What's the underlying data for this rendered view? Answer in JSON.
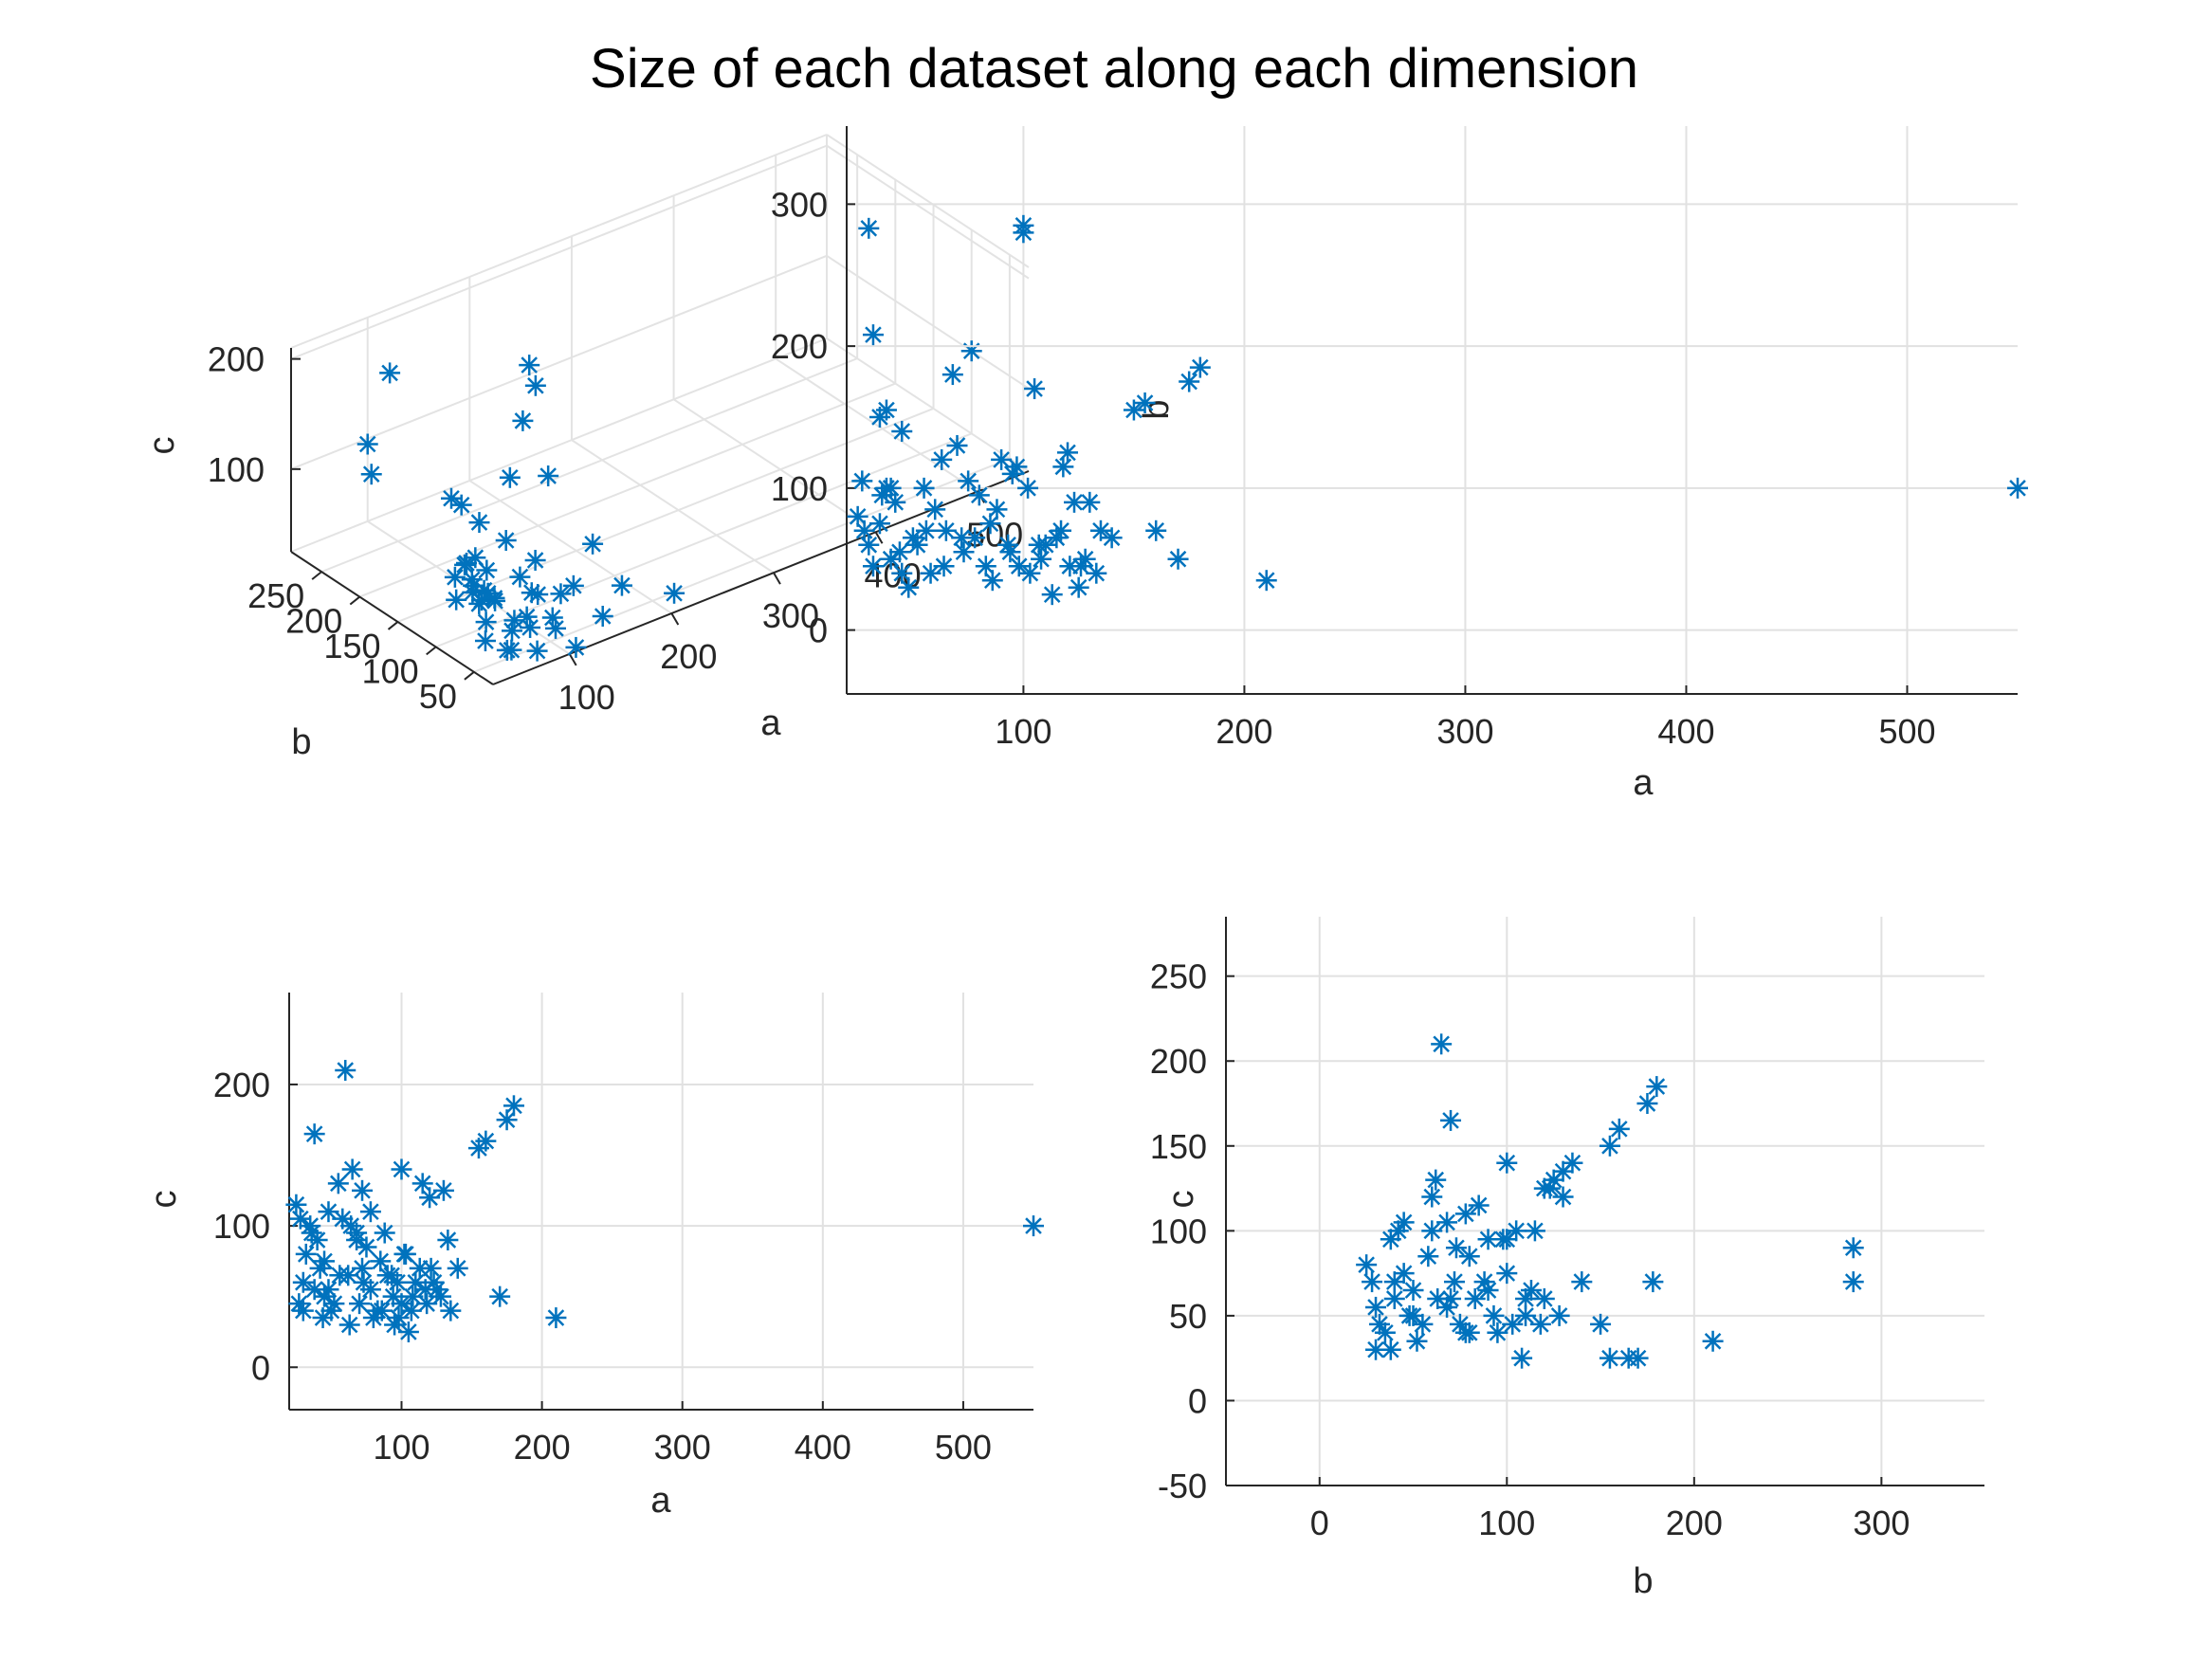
{
  "figure": {
    "suptitle": "Size of each dataset along each dimension",
    "marker_color": "#0072BD",
    "marker": "asterisk"
  },
  "chart_data": [
    {
      "type": "scatter",
      "projection": "3d",
      "position": "top-left",
      "title": "",
      "xlabel": "a",
      "ylabel": "b",
      "zlabel": "c",
      "xticks": [
        "100",
        "200",
        "300",
        "400",
        "500"
      ],
      "yticks": [
        "250",
        "200",
        "150",
        "100",
        "50"
      ],
      "zticks": [
        "200",
        "100"
      ],
      "xlim": [
        25,
        550
      ],
      "ylim": [
        25,
        290
      ],
      "zlim": [
        25,
        210
      ],
      "grid": true,
      "points": [
        [
          20,
          30,
          110
        ],
        [
          30,
          40,
          120
        ],
        [
          28,
          55,
          100
        ],
        [
          30,
          50,
          85
        ],
        [
          35,
          45,
          95
        ],
        [
          40,
          60,
          80
        ],
        [
          38,
          70,
          95
        ],
        [
          42,
          85,
          100
        ],
        [
          45,
          75,
          110
        ],
        [
          50,
          40,
          40
        ],
        [
          55,
          100,
          90
        ],
        [
          60,
          70,
          70
        ],
        [
          62,
          210,
          210
        ],
        [
          65,
          120,
          130
        ],
        [
          68,
          80,
          60
        ],
        [
          70,
          140,
          125
        ],
        [
          72,
          60,
          50
        ],
        [
          75,
          110,
          115
        ],
        [
          80,
          50,
          45
        ],
        [
          85,
          70,
          80
        ],
        [
          90,
          95,
          100
        ],
        [
          95,
          60,
          65
        ],
        [
          100,
          290,
          95
        ],
        [
          100,
          285,
          70
        ],
        [
          105,
          50,
          35
        ],
        [
          110,
          30,
          25
        ],
        [
          115,
          90,
          75
        ],
        [
          120,
          130,
          130
        ],
        [
          125,
          70,
          50
        ],
        [
          130,
          60,
          60
        ],
        [
          140,
          35,
          40
        ],
        [
          150,
          120,
          125
        ],
        [
          155,
          160,
          155
        ],
        [
          160,
          75,
          80
        ],
        [
          170,
          50,
          50
        ],
        [
          175,
          170,
          175
        ],
        [
          180,
          185,
          185
        ],
        [
          210,
          35,
          35
        ],
        [
          550,
          100,
          100
        ],
        [
          25,
          35,
          60
        ],
        [
          30,
          80,
          75
        ],
        [
          40,
          95,
          85
        ],
        [
          48,
          65,
          55
        ],
        [
          52,
          88,
          70
        ],
        [
          58,
          45,
          35
        ],
        [
          66,
          55,
          45
        ],
        [
          78,
          38,
          30
        ],
        [
          88,
          65,
          45
        ],
        [
          98,
          72,
          60
        ],
        [
          108,
          58,
          40
        ]
      ]
    },
    {
      "type": "scatter",
      "position": "top-right",
      "title": "",
      "xlabel": "a",
      "ylabel": "b",
      "xlim": [
        20,
        550
      ],
      "ylim": [
        -45,
        355
      ],
      "xticks": [
        100,
        200,
        300,
        400,
        500
      ],
      "yticks": [
        0,
        100,
        200,
        300
      ],
      "grid": true,
      "x": [
        30,
        32,
        35,
        38,
        40,
        42,
        25,
        28,
        30,
        35,
        40,
        45,
        50,
        55,
        60,
        65,
        70,
        75,
        80,
        85,
        90,
        95,
        100,
        100,
        105,
        110,
        115,
        120,
        125,
        130,
        135,
        140,
        150,
        155,
        160,
        170,
        175,
        180,
        210,
        550,
        32,
        38,
        45,
        52,
        58,
        63,
        68,
        73,
        78,
        83,
        88,
        93,
        98,
        103,
        108,
        113,
        118,
        123,
        128,
        133,
        27,
        36,
        44,
        48,
        56,
        64,
        72,
        86,
        94,
        97,
        102,
        107,
        117,
        121,
        126
      ],
      "y": [
        283,
        208,
        150,
        155,
        100,
        90,
        80,
        70,
        60,
        75,
        50,
        40,
        65,
        100,
        85,
        70,
        130,
        105,
        95,
        75,
        120,
        110,
        285,
        280,
        170,
        60,
        65,
        125,
        30,
        90,
        70,
        65,
        155,
        160,
        70,
        50,
        175,
        185,
        35,
        100,
        45,
        100,
        140,
        60,
        40,
        120,
        180,
        55,
        65,
        45,
        85,
        60,
        45,
        40,
        50,
        25,
        115,
        90,
        50,
        40,
        105,
        95,
        55,
        30,
        70,
        45,
        65,
        35,
        55,
        115,
        100,
        60,
        70,
        45,
        45
      ]
    },
    {
      "type": "scatter",
      "position": "bottom-left",
      "title": "",
      "xlabel": "a",
      "ylabel": "c",
      "xlim": [
        20,
        550
      ],
      "ylim": [
        -30,
        265
      ],
      "xticks": [
        100,
        200,
        300,
        400,
        500
      ],
      "yticks": [
        0,
        100,
        200
      ],
      "grid": true,
      "x": [
        25,
        28,
        30,
        32,
        35,
        38,
        40,
        42,
        45,
        48,
        50,
        55,
        60,
        62,
        65,
        68,
        70,
        72,
        75,
        78,
        80,
        85,
        90,
        95,
        100,
        100,
        105,
        110,
        115,
        120,
        125,
        130,
        135,
        140,
        155,
        160,
        170,
        175,
        180,
        210,
        550,
        30,
        38,
        45,
        52,
        58,
        63,
        68,
        73,
        78,
        83,
        88,
        93,
        98,
        103,
        108,
        113,
        118,
        123,
        128,
        133,
        27,
        36,
        44,
        48,
        56,
        64,
        72,
        86,
        94,
        97,
        102,
        107,
        117,
        121
      ],
      "y": [
        115,
        105,
        60,
        80,
        100,
        165,
        90,
        70,
        50,
        110,
        40,
        130,
        210,
        65,
        140,
        95,
        45,
        125,
        85,
        55,
        35,
        75,
        65,
        30,
        140,
        45,
        25,
        60,
        130,
        120,
        55,
        125,
        40,
        70,
        155,
        160,
        50,
        175,
        185,
        35,
        100,
        40,
        55,
        75,
        45,
        105,
        30,
        90,
        60,
        110,
        40,
        95,
        65,
        35,
        80,
        50,
        70,
        45,
        60,
        50,
        90,
        45,
        95,
        35,
        55,
        65,
        100,
        70,
        40,
        50,
        60,
        80,
        40,
        55,
        70
      ]
    },
    {
      "type": "scatter",
      "position": "bottom-right",
      "title": "",
      "xlabel": "b",
      "ylabel": "c",
      "xlim": [
        -50,
        355
      ],
      "ylim": [
        -50,
        285
      ],
      "xticks": [
        0,
        100,
        200,
        300
      ],
      "yticks": [
        -50,
        0,
        50,
        100,
        150,
        200,
        250
      ],
      "grid": true,
      "x": [
        25,
        28,
        30,
        32,
        35,
        38,
        40,
        42,
        45,
        48,
        50,
        55,
        60,
        62,
        65,
        68,
        70,
        72,
        75,
        78,
        80,
        85,
        90,
        95,
        100,
        100,
        105,
        110,
        115,
        120,
        125,
        130,
        135,
        140,
        155,
        160,
        170,
        175,
        180,
        210,
        285,
        285,
        30,
        38,
        45,
        52,
        58,
        63,
        68,
        73,
        78,
        83,
        88,
        93,
        98,
        103,
        108,
        113,
        118,
        123,
        128,
        40,
        50,
        60,
        70,
        80,
        90,
        100,
        110,
        120,
        130,
        150,
        155,
        165,
        178
      ],
      "y": [
        80,
        70,
        55,
        45,
        40,
        30,
        60,
        100,
        75,
        50,
        65,
        45,
        120,
        130,
        210,
        105,
        165,
        70,
        45,
        110,
        85,
        115,
        65,
        40,
        140,
        95,
        100,
        60,
        100,
        125,
        130,
        135,
        140,
        70,
        150,
        160,
        25,
        175,
        185,
        35,
        90,
        70,
        30,
        95,
        105,
        35,
        85,
        60,
        55,
        90,
        40,
        60,
        70,
        50,
        95,
        45,
        25,
        65,
        45,
        125,
        50,
        70,
        50,
        100,
        60,
        40,
        95,
        75,
        50,
        60,
        120,
        45,
        25,
        25,
        70
      ]
    }
  ]
}
